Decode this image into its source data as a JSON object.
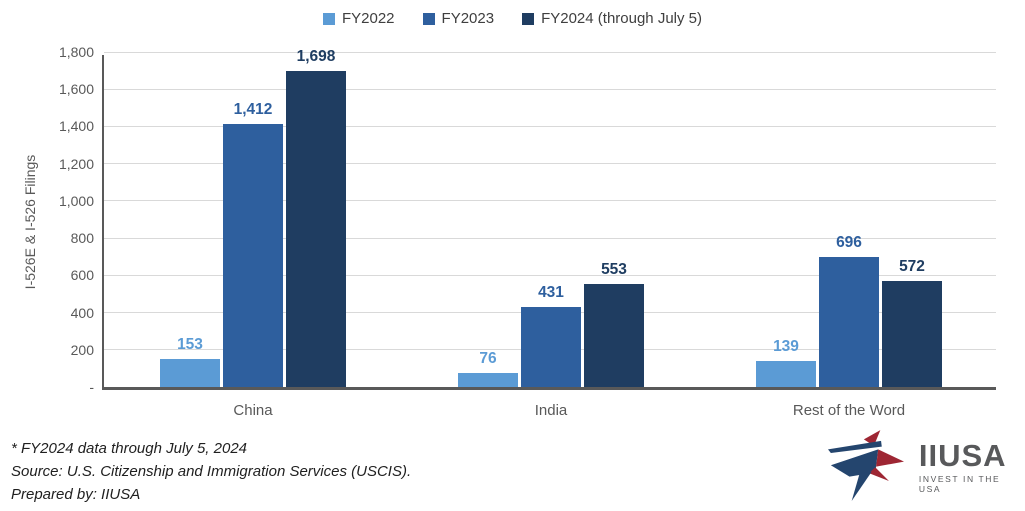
{
  "chart_data": {
    "type": "bar",
    "categories": [
      "China",
      "India",
      "Rest of the Word"
    ],
    "series": [
      {
        "name": "FY2022",
        "color": "#5B9BD5",
        "values": [
          153,
          76,
          139
        ]
      },
      {
        "name": "FY2023",
        "color": "#2E5F9E",
        "values": [
          1412,
          431,
          696
        ]
      },
      {
        "name": "FY2024 (through July 5)",
        "color": "#1F3D61",
        "values": [
          1698,
          553,
          572
        ]
      }
    ],
    "title": "",
    "xlabel": "",
    "ylabel": "I-526E & I-526 Filings",
    "ylim": [
      0,
      1800
    ],
    "ytick_step": 200,
    "ytick_labels": [
      "-",
      "200",
      "400",
      "600",
      "800",
      "1,000",
      "1,200",
      "1,400",
      "1,600",
      "1,800"
    ],
    "grid": true,
    "legend_position": "top",
    "data_labels": true
  },
  "footnotes": {
    "line1": "* FY2024 data through July 5, 2024",
    "line2": "Source: U.S. Citizenship and Immigration Services (USCIS).",
    "line3": "Prepared by: IIUSA"
  },
  "logo": {
    "name": "IIUSA",
    "tagline": "INVEST IN THE USA"
  },
  "colors": {
    "axis_line": "#595959",
    "gridline": "#D9D9D9",
    "tick_text": "#595959",
    "legend_text": "#3F3F3F",
    "logo_gray": "#58595B",
    "logo_red": "#9E2633",
    "logo_navy": "#24456E"
  }
}
